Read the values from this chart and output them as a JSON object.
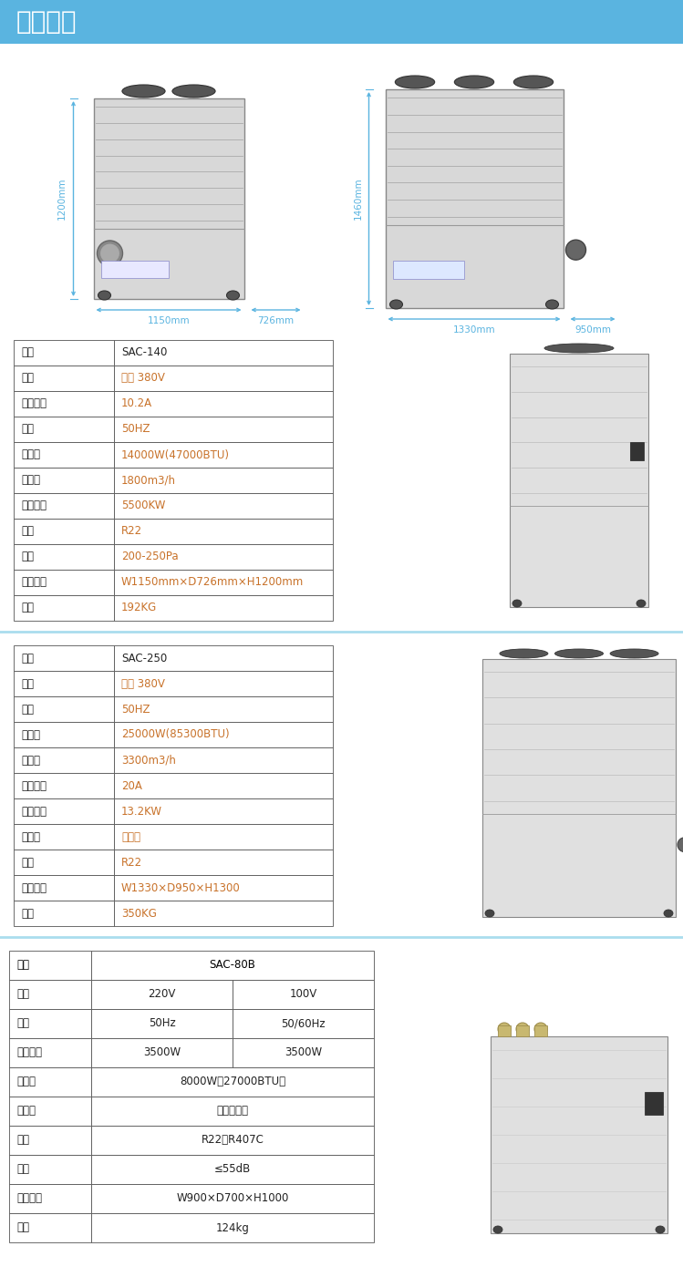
{
  "title": "产品参数",
  "title_bg": "#5ab4e0",
  "title_color": "white",
  "bg_color": "white",
  "table1": {
    "rows": [
      [
        "型号",
        "SAC-140"
      ],
      [
        "电源",
        "三相 380V"
      ],
      [
        "额定电流",
        "10.2A"
      ],
      [
        "频率",
        "50HZ"
      ],
      [
        "制冷量",
        "14000W(47000BTU)"
      ],
      [
        "出风量",
        "1800m3/h"
      ],
      [
        "消耗功率",
        "5500KW"
      ],
      [
        "冷媒",
        "R22"
      ],
      [
        "风压",
        "200-250Pa"
      ],
      [
        "外形尺寸",
        "W1150mm×D726mm×H1200mm"
      ],
      [
        "重量",
        "192KG"
      ]
    ],
    "col1_color": "#222222",
    "col2_color": "#c8722a"
  },
  "table2": {
    "rows": [
      [
        "型号",
        "SAC-250"
      ],
      [
        "电源",
        "三相 380V"
      ],
      [
        "频率",
        "50HZ"
      ],
      [
        "制冷量",
        "25000W(85300BTU)"
      ],
      [
        "出风量",
        "3300m3/h"
      ],
      [
        "输入电流",
        "20A"
      ],
      [
        "输入功率",
        "13.2KW"
      ],
      [
        "压缩机",
        "涡旋式"
      ],
      [
        "冷媒",
        "R22"
      ],
      [
        "外形尺寸",
        "W1330×D950×H1300"
      ],
      [
        "重量",
        "350KG"
      ]
    ],
    "col1_color": "#222222",
    "col2_color": "#c8722a"
  },
  "table3": {
    "header_col1": "型号",
    "header_val": "SAC-80B",
    "rows": [
      [
        "电源",
        "220V",
        "100V"
      ],
      [
        "频率",
        "50Hz",
        "50/60Hz"
      ],
      [
        "输入功率",
        "3500W",
        "3500W"
      ],
      [
        "制冷量",
        "8000W（27000BTU）",
        ""
      ],
      [
        "压缩机",
        "封闭旋转式",
        ""
      ],
      [
        "冷媒",
        "R22、R407C",
        ""
      ],
      [
        "噪音",
        "≤55dB",
        ""
      ],
      [
        "外形尺寸",
        "W900×D700×H1000",
        ""
      ],
      [
        "重量",
        "124kg",
        ""
      ]
    ],
    "col1_color": "#222222",
    "col2_color": "#222222"
  },
  "dim_color": "#5ab4e0",
  "border_color": "#555555",
  "sep_color": "#aaddee"
}
